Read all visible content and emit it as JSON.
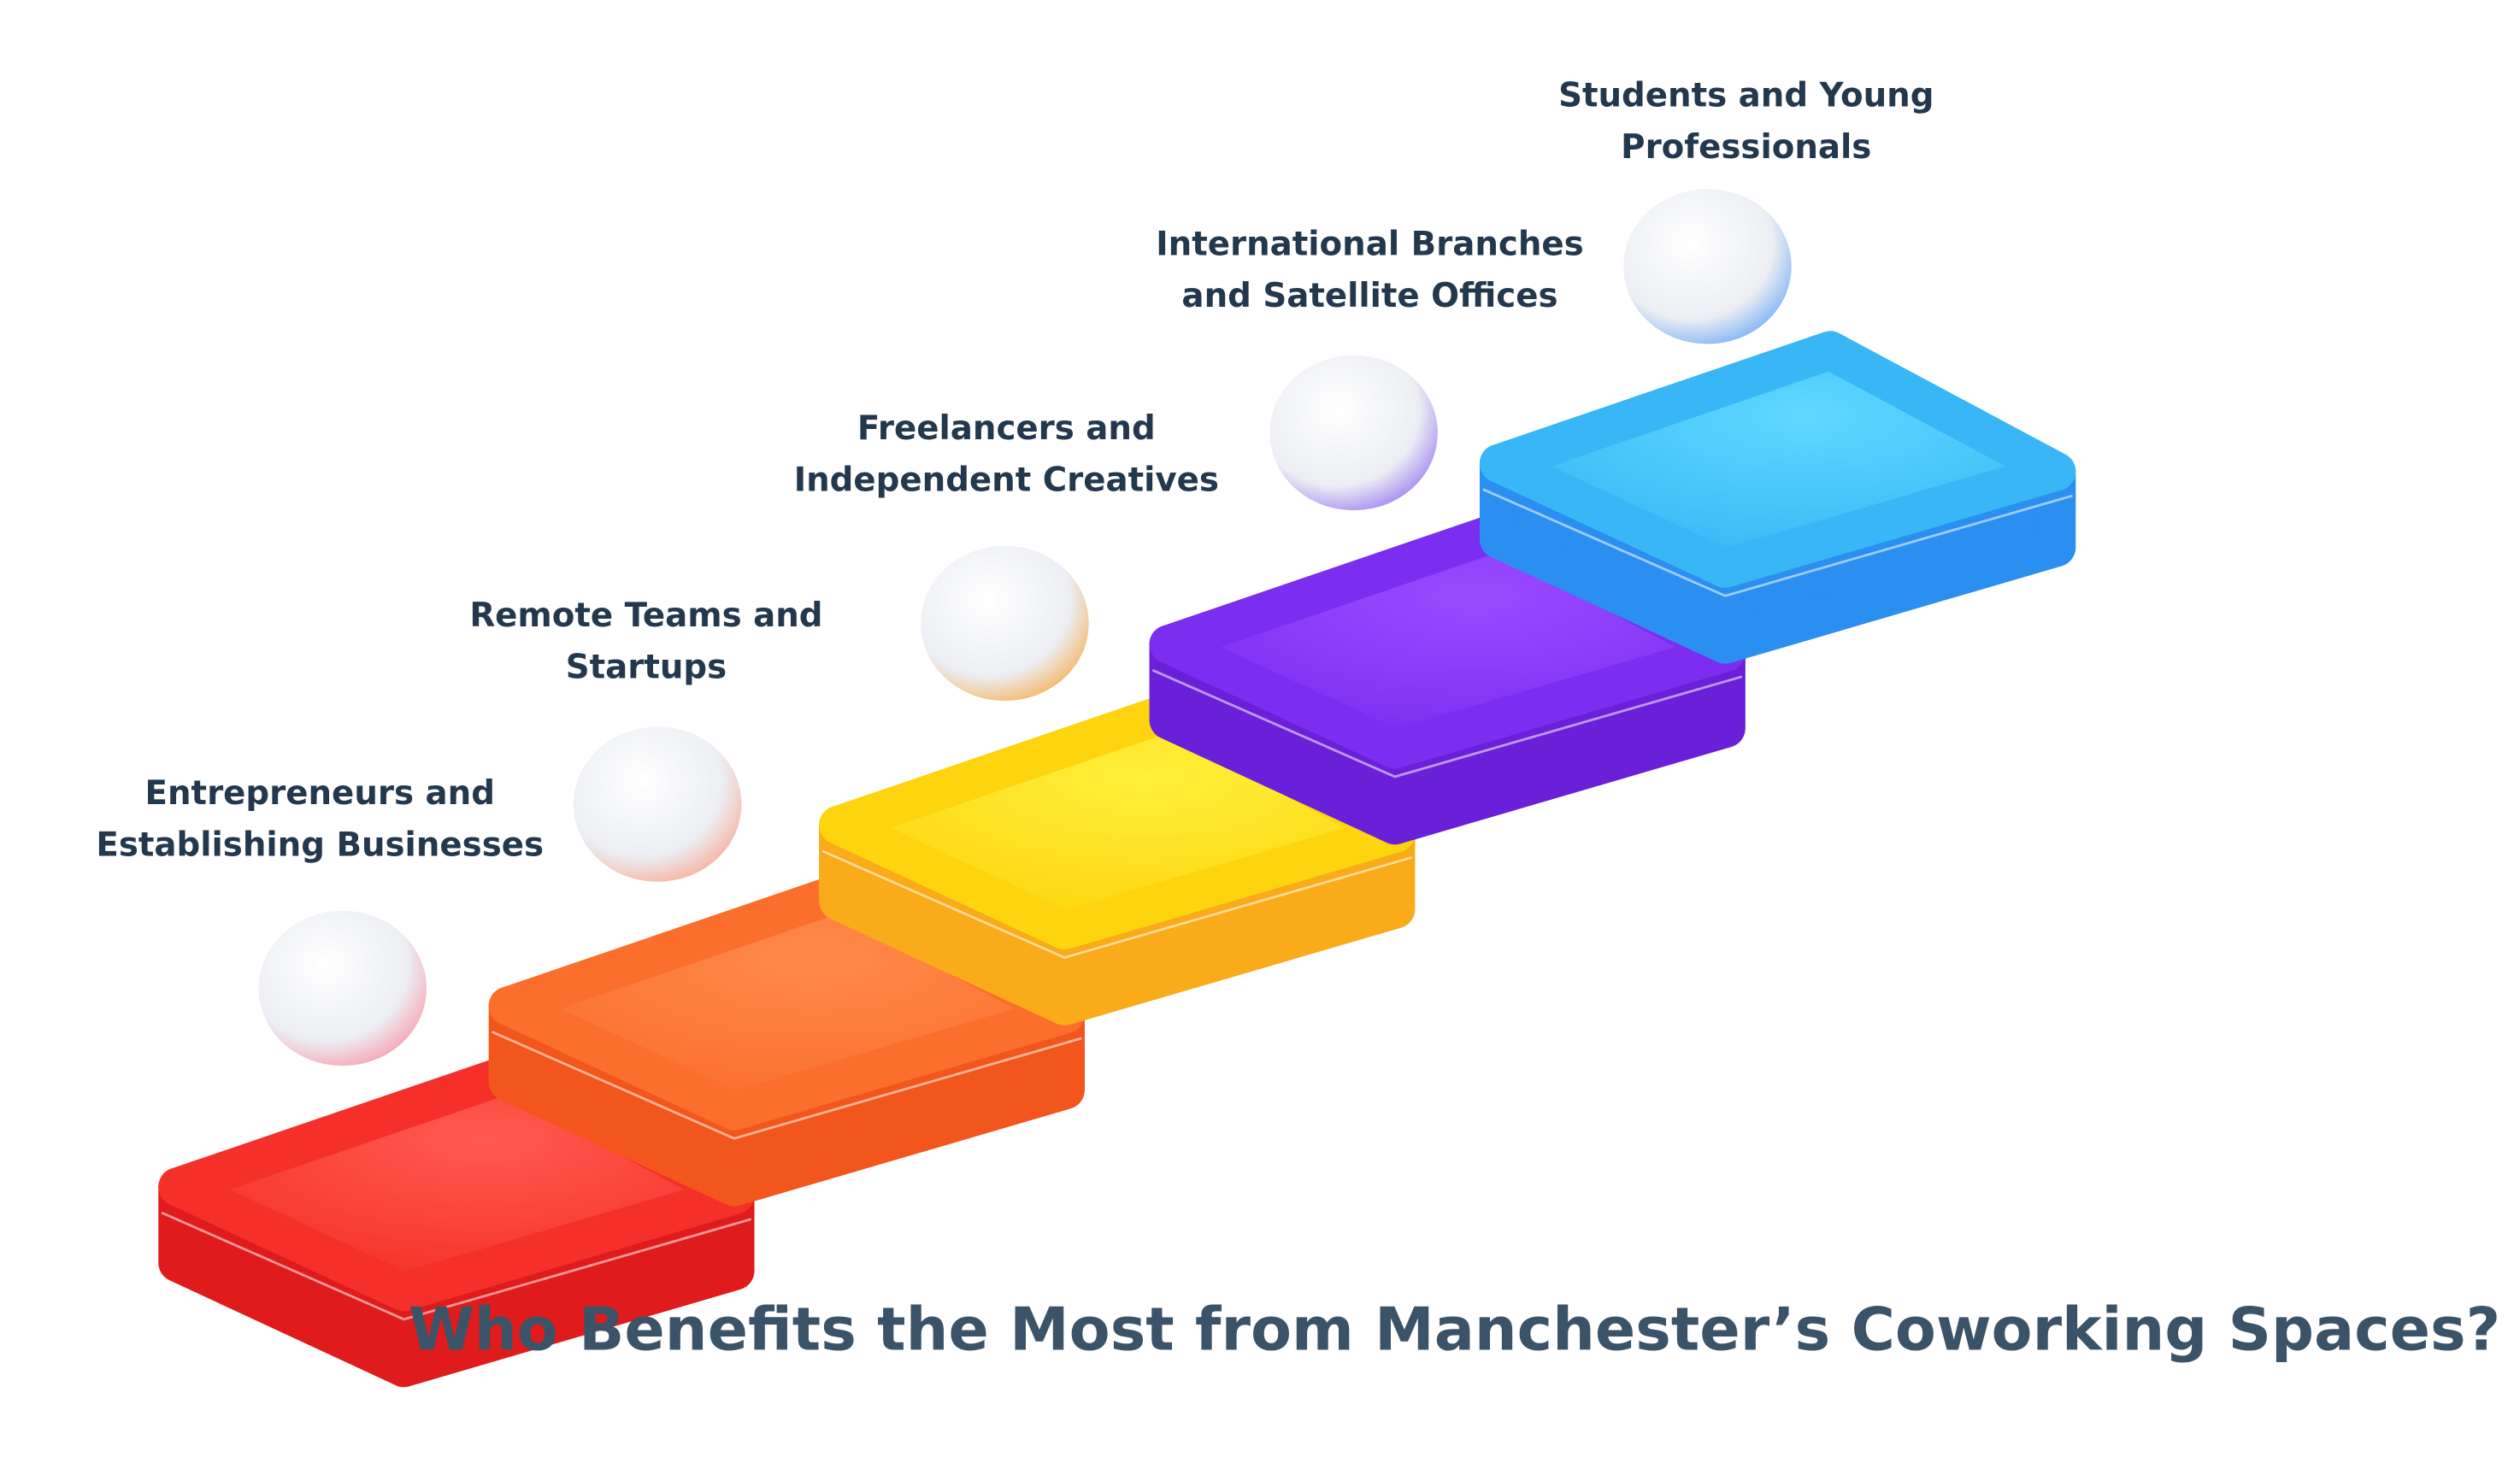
{
  "title": "Who Benefits the Most from Manchester’s Coworking Spaces?",
  "steps": [
    {
      "lines": [
        "Entrepreneurs and",
        "Establishing Businesses"
      ]
    },
    {
      "lines": [
        "Remote Teams and",
        "Startups"
      ]
    },
    {
      "lines": [
        "Freelancers and",
        "Independent Creatives"
      ]
    },
    {
      "lines": [
        "International Branches",
        "and Satellite Offices"
      ]
    },
    {
      "lines": [
        "Students and Young",
        "Professionals"
      ]
    }
  ]
}
